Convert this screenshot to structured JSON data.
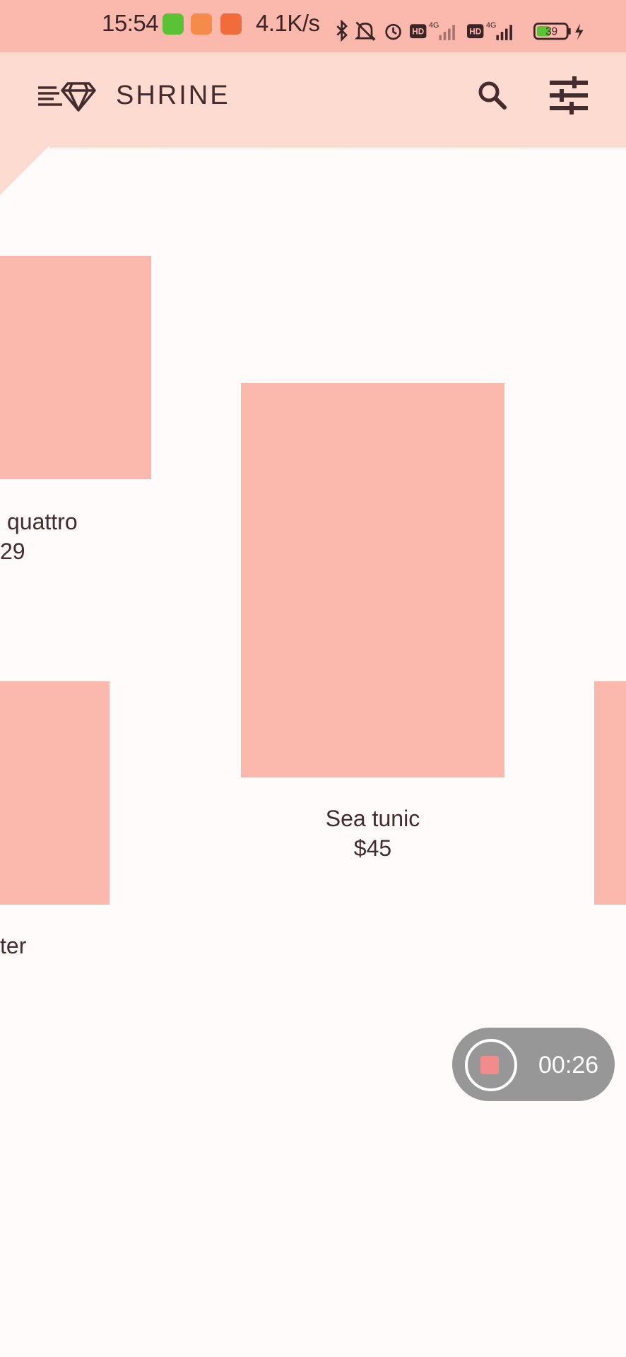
{
  "status_bar": {
    "time": "15:54",
    "net_speed": "4.1K/s",
    "battery_level": "39",
    "icons": [
      "app-green-icon",
      "app-orange-icon",
      "video-app-icon",
      "bluetooth-icon",
      "mute-bell-icon",
      "alarm-icon",
      "hd-icon",
      "signal-4g-icon",
      "hd-icon",
      "signal-4g-icon",
      "battery-icon",
      "charging-icon"
    ],
    "signal_label": "4G",
    "hd_label": "HD"
  },
  "app_bar": {
    "title": "SHRINE",
    "menu_icon": "menu-diamond-icon",
    "search_icon": "search-icon",
    "filter_icon": "tune-icon"
  },
  "products": [
    {
      "name": "quattro",
      "price": "29"
    },
    {
      "name": "Sea tunic",
      "price": "$45"
    },
    {
      "name": "ter",
      "price": ""
    }
  ],
  "recorder": {
    "elapsed": "00:26"
  },
  "colors": {
    "status_bar": "#FBB8AC",
    "app_bar": "#FEDBD0",
    "background": "#FFFBFA",
    "product_placeholder": "#FBB8AC",
    "text": "#442B2D",
    "recorder_bg": "#979797"
  }
}
